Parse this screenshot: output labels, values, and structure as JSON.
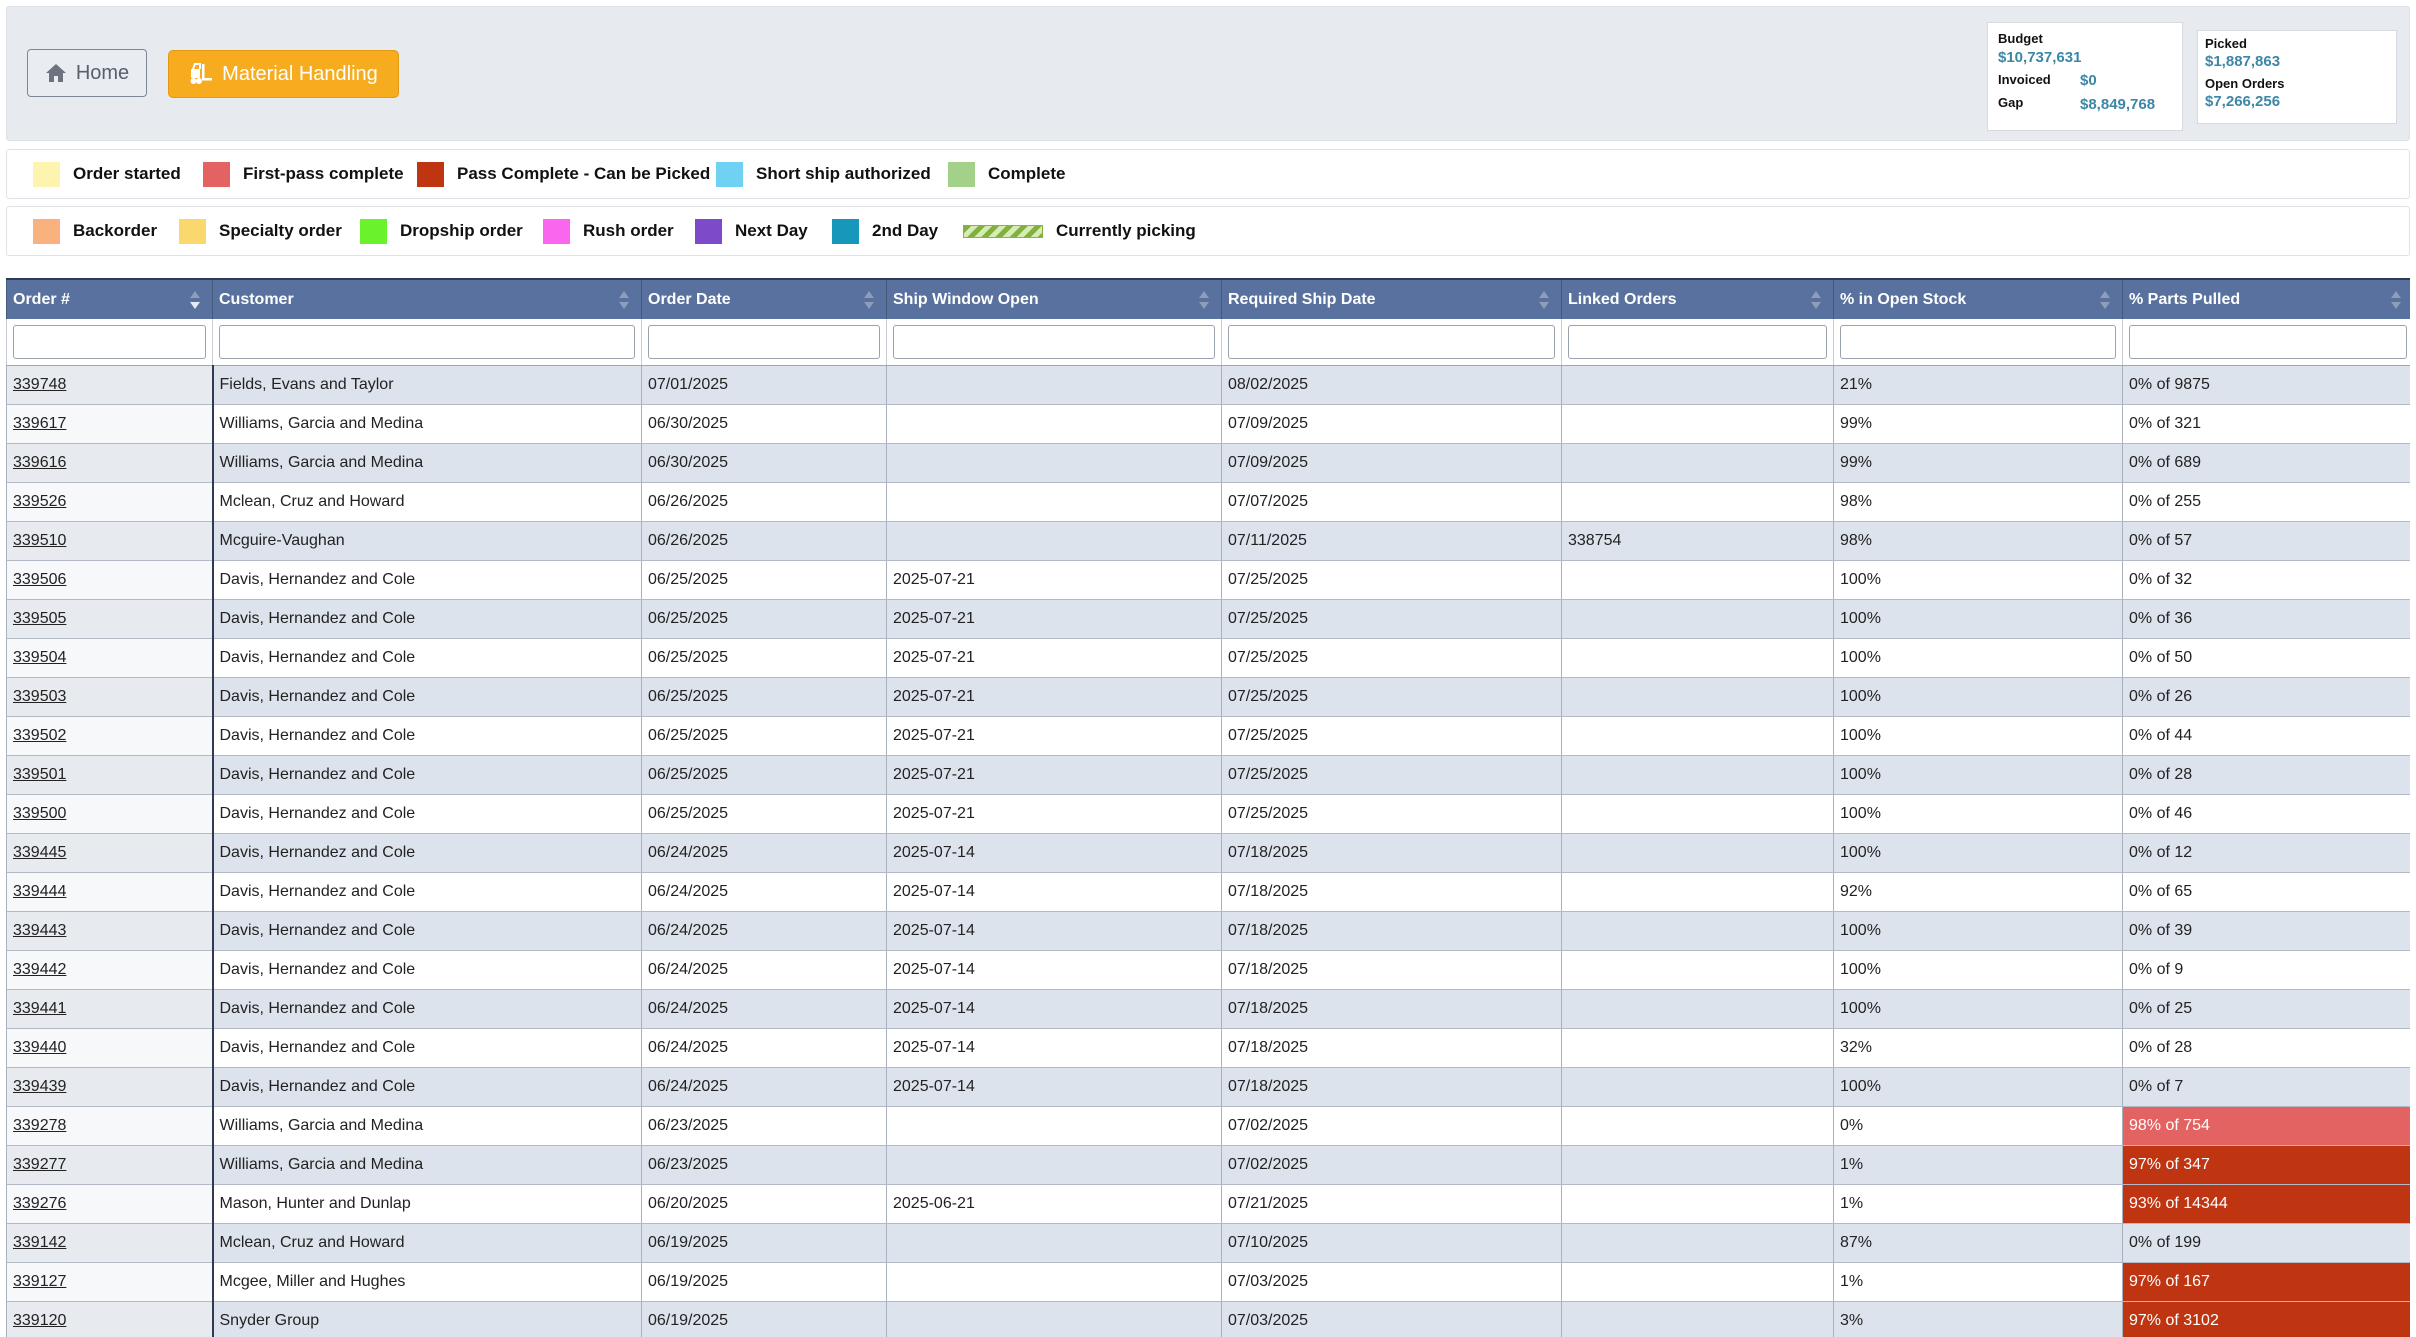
{
  "nav": {
    "home_label": "Home",
    "material_handling_label": "Material Handling"
  },
  "stats": {
    "budget_label": "Budget",
    "budget_value": "$10,737,631",
    "invoiced_label": "Invoiced",
    "invoiced_value": "$0",
    "gap_label": "Gap",
    "gap_value": "$8,849,768",
    "picked_label": "Picked",
    "picked_value": "$1,887,863",
    "open_orders_label": "Open Orders",
    "open_orders_value": "$7,266,256"
  },
  "legend_row1": [
    {
      "label": "Order started",
      "color": "#fff3b0",
      "icon": "swatch"
    },
    {
      "label": "First-pass complete",
      "color": "#e36262",
      "icon": "swatch"
    },
    {
      "label": "Pass Complete - Can be Picked",
      "color": "#bf3512",
      "icon": "swatch"
    },
    {
      "label": "Short ship authorized",
      "color": "#6fd2f2",
      "icon": "swatch"
    },
    {
      "label": "Complete",
      "color": "#a4d18a",
      "icon": "swatch"
    }
  ],
  "legend_row2": [
    {
      "label": "Backorder",
      "color": "#f9b27e",
      "icon": "swatch"
    },
    {
      "label": "Specialty order",
      "color": "#fbd86e",
      "icon": "swatch"
    },
    {
      "label": "Dropship order",
      "color": "#6af22c",
      "icon": "swatch"
    },
    {
      "label": "Rush order",
      "color": "#fb66ef",
      "icon": "swatch"
    },
    {
      "label": "Next Day",
      "color": "#7d4ac9",
      "icon": "swatch"
    },
    {
      "label": "2nd Day",
      "color": "#1797b9",
      "icon": "swatch"
    },
    {
      "label": "Currently picking",
      "color": "#7fb040",
      "icon": "striped-bar"
    }
  ],
  "table": {
    "columns": [
      "Order #",
      "Customer",
      "Order Date",
      "Ship Window Open",
      "Required Ship Date",
      "Linked Orders",
      "% in Open Stock",
      "% Parts Pulled"
    ],
    "sorted_column": "Order #",
    "sort_direction": "descending",
    "rows": [
      {
        "order": "339748",
        "customer": "Fields, Evans and Taylor",
        "order_date": "07/01/2025",
        "ship_window": "",
        "required_ship": "08/02/2025",
        "linked": "",
        "open_stock": "21%",
        "pulled": "0% of 9875",
        "status": ""
      },
      {
        "order": "339617",
        "customer": "Williams, Garcia and Medina",
        "order_date": "06/30/2025",
        "ship_window": "",
        "required_ship": "07/09/2025",
        "linked": "",
        "open_stock": "99%",
        "pulled": "0% of 321",
        "status": ""
      },
      {
        "order": "339616",
        "customer": "Williams, Garcia and Medina",
        "order_date": "06/30/2025",
        "ship_window": "",
        "required_ship": "07/09/2025",
        "linked": "",
        "open_stock": "99%",
        "pulled": "0% of 689",
        "status": ""
      },
      {
        "order": "339526",
        "customer": "Mclean, Cruz and Howard",
        "order_date": "06/26/2025",
        "ship_window": "",
        "required_ship": "07/07/2025",
        "linked": "",
        "open_stock": "98%",
        "pulled": "0% of 255",
        "status": ""
      },
      {
        "order": "339510",
        "customer": "Mcguire-Vaughan",
        "order_date": "06/26/2025",
        "ship_window": "",
        "required_ship": "07/11/2025",
        "linked": "338754",
        "open_stock": "98%",
        "pulled": "0% of 57",
        "status": ""
      },
      {
        "order": "339506",
        "customer": "Davis, Hernandez and Cole",
        "order_date": "06/25/2025",
        "ship_window": "2025-07-21",
        "required_ship": "07/25/2025",
        "linked": "",
        "open_stock": "100%",
        "pulled": "0% of 32",
        "status": ""
      },
      {
        "order": "339505",
        "customer": "Davis, Hernandez and Cole",
        "order_date": "06/25/2025",
        "ship_window": "2025-07-21",
        "required_ship": "07/25/2025",
        "linked": "",
        "open_stock": "100%",
        "pulled": "0% of 36",
        "status": ""
      },
      {
        "order": "339504",
        "customer": "Davis, Hernandez and Cole",
        "order_date": "06/25/2025",
        "ship_window": "2025-07-21",
        "required_ship": "07/25/2025",
        "linked": "",
        "open_stock": "100%",
        "pulled": "0% of 50",
        "status": ""
      },
      {
        "order": "339503",
        "customer": "Davis, Hernandez and Cole",
        "order_date": "06/25/2025",
        "ship_window": "2025-07-21",
        "required_ship": "07/25/2025",
        "linked": "",
        "open_stock": "100%",
        "pulled": "0% of 26",
        "status": ""
      },
      {
        "order": "339502",
        "customer": "Davis, Hernandez and Cole",
        "order_date": "06/25/2025",
        "ship_window": "2025-07-21",
        "required_ship": "07/25/2025",
        "linked": "",
        "open_stock": "100%",
        "pulled": "0% of 44",
        "status": ""
      },
      {
        "order": "339501",
        "customer": "Davis, Hernandez and Cole",
        "order_date": "06/25/2025",
        "ship_window": "2025-07-21",
        "required_ship": "07/25/2025",
        "linked": "",
        "open_stock": "100%",
        "pulled": "0% of 28",
        "status": ""
      },
      {
        "order": "339500",
        "customer": "Davis, Hernandez and Cole",
        "order_date": "06/25/2025",
        "ship_window": "2025-07-21",
        "required_ship": "07/25/2025",
        "linked": "",
        "open_stock": "100%",
        "pulled": "0% of 46",
        "status": ""
      },
      {
        "order": "339445",
        "customer": "Davis, Hernandez and Cole",
        "order_date": "06/24/2025",
        "ship_window": "2025-07-14",
        "required_ship": "07/18/2025",
        "linked": "",
        "open_stock": "100%",
        "pulled": "0% of 12",
        "status": ""
      },
      {
        "order": "339444",
        "customer": "Davis, Hernandez and Cole",
        "order_date": "06/24/2025",
        "ship_window": "2025-07-14",
        "required_ship": "07/18/2025",
        "linked": "",
        "open_stock": "92%",
        "pulled": "0% of 65",
        "status": ""
      },
      {
        "order": "339443",
        "customer": "Davis, Hernandez and Cole",
        "order_date": "06/24/2025",
        "ship_window": "2025-07-14",
        "required_ship": "07/18/2025",
        "linked": "",
        "open_stock": "100%",
        "pulled": "0% of 39",
        "status": ""
      },
      {
        "order": "339442",
        "customer": "Davis, Hernandez and Cole",
        "order_date": "06/24/2025",
        "ship_window": "2025-07-14",
        "required_ship": "07/18/2025",
        "linked": "",
        "open_stock": "100%",
        "pulled": "0% of 9",
        "status": ""
      },
      {
        "order": "339441",
        "customer": "Davis, Hernandez and Cole",
        "order_date": "06/24/2025",
        "ship_window": "2025-07-14",
        "required_ship": "07/18/2025",
        "linked": "",
        "open_stock": "100%",
        "pulled": "0% of 25",
        "status": ""
      },
      {
        "order": "339440",
        "customer": "Davis, Hernandez and Cole",
        "order_date": "06/24/2025",
        "ship_window": "2025-07-14",
        "required_ship": "07/18/2025",
        "linked": "",
        "open_stock": "32%",
        "pulled": "0% of 28",
        "status": ""
      },
      {
        "order": "339439",
        "customer": "Davis, Hernandez and Cole",
        "order_date": "06/24/2025",
        "ship_window": "2025-07-14",
        "required_ship": "07/18/2025",
        "linked": "",
        "open_stock": "100%",
        "pulled": "0% of 7",
        "status": ""
      },
      {
        "order": "339278",
        "customer": "Williams, Garcia and Medina",
        "order_date": "06/23/2025",
        "ship_window": "",
        "required_ship": "07/02/2025",
        "linked": "",
        "open_stock": "0%",
        "pulled": "98% of 754",
        "status": "first-pass"
      },
      {
        "order": "339277",
        "customer": "Williams, Garcia and Medina",
        "order_date": "06/23/2025",
        "ship_window": "",
        "required_ship": "07/02/2025",
        "linked": "",
        "open_stock": "1%",
        "pulled": "97% of 347",
        "status": "pass-complete"
      },
      {
        "order": "339276",
        "customer": "Mason, Hunter and Dunlap",
        "order_date": "06/20/2025",
        "ship_window": "2025-06-21",
        "required_ship": "07/21/2025",
        "linked": "",
        "open_stock": "1%",
        "pulled": "93% of 14344",
        "status": "pass-complete"
      },
      {
        "order": "339142",
        "customer": "Mclean, Cruz and Howard",
        "order_date": "06/19/2025",
        "ship_window": "",
        "required_ship": "07/10/2025",
        "linked": "",
        "open_stock": "87%",
        "pulled": "0% of 199",
        "status": ""
      },
      {
        "order": "339127",
        "customer": "Mcgee, Miller and Hughes",
        "order_date": "06/19/2025",
        "ship_window": "",
        "required_ship": "07/03/2025",
        "linked": "",
        "open_stock": "1%",
        "pulled": "97% of 167",
        "status": "pass-complete"
      },
      {
        "order": "339120",
        "customer": "Snyder Group",
        "order_date": "06/19/2025",
        "ship_window": "",
        "required_ship": "07/03/2025",
        "linked": "",
        "open_stock": "3%",
        "pulled": "97% of 3102",
        "status": "pass-complete"
      }
    ]
  }
}
